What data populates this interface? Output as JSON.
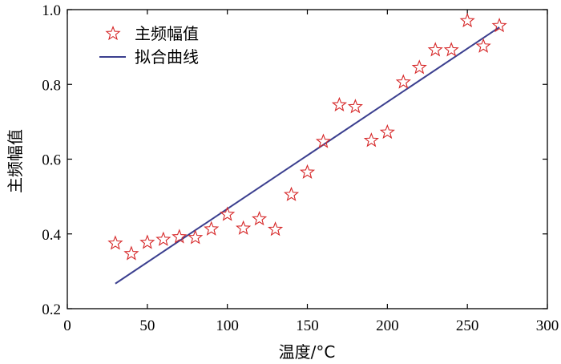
{
  "chart_data": {
    "type": "scatter",
    "title": "",
    "xlabel": "温度/°C",
    "ylabel": "主频幅值",
    "xlim": [
      0,
      300
    ],
    "ylim": [
      0.2,
      1.0
    ],
    "xticks": [
      "0",
      "50",
      "100",
      "150",
      "200",
      "250",
      "300"
    ],
    "yticks": [
      "0.2",
      "0.4",
      "0.6",
      "0.8",
      "1.0"
    ],
    "grid": false,
    "legend_position": "top-left",
    "series": [
      {
        "name": "主频幅值",
        "kind": "scatter",
        "marker": "star",
        "color": "#d62728",
        "x": [
          30,
          40,
          50,
          60,
          70,
          80,
          90,
          100,
          110,
          120,
          130,
          140,
          150,
          160,
          170,
          180,
          190,
          200,
          210,
          220,
          230,
          240,
          250,
          260,
          270
        ],
        "y": [
          0.375,
          0.347,
          0.377,
          0.385,
          0.392,
          0.39,
          0.413,
          0.452,
          0.415,
          0.44,
          0.412,
          0.505,
          0.565,
          0.647,
          0.745,
          0.74,
          0.65,
          0.672,
          0.806,
          0.845,
          0.892,
          0.892,
          0.97,
          0.902,
          0.957
        ]
      },
      {
        "name": "拟合曲线",
        "kind": "line",
        "color": "#3b3f8f",
        "x": [
          30,
          270
        ],
        "y": [
          0.267,
          0.953
        ]
      }
    ]
  }
}
